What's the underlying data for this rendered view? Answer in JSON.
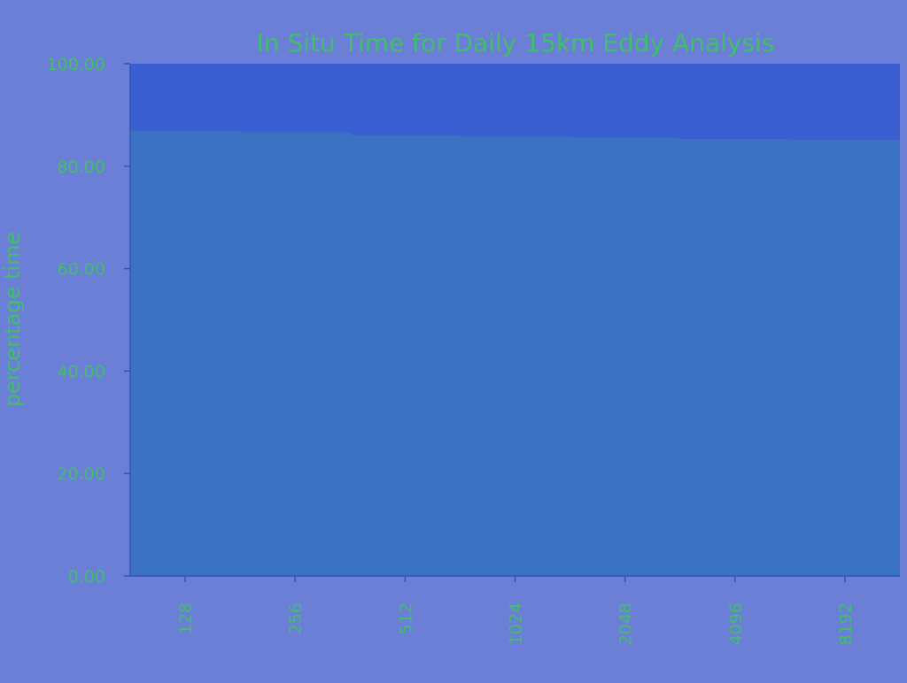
{
  "chart_data": {
    "type": "bar",
    "title": "In Situ Time for Daily 15km Eddy Analysis",
    "ylabel": "percentage time",
    "xlabel": "",
    "categories": [
      "128",
      "256",
      "512",
      "1024",
      "2048",
      "4096",
      "8192"
    ],
    "series": [
      {
        "values": [
          86.9,
          86.6,
          86.1,
          85.8,
          85.6,
          85.3,
          85.1
        ]
      }
    ],
    "ylim": [
      0,
      100
    ],
    "yticks": [
      "0.00",
      "20.00",
      "40.00",
      "60.00",
      "80.00",
      "100.00"
    ],
    "grid": false,
    "legend": "none",
    "colors": {
      "background": "#6b7fd6",
      "plot_area": "#3a5fd0",
      "bar": "#3b72c4",
      "title": "#3fbf6a",
      "tick_label": "#3fbf6a",
      "axis": "#2f55b5"
    }
  }
}
